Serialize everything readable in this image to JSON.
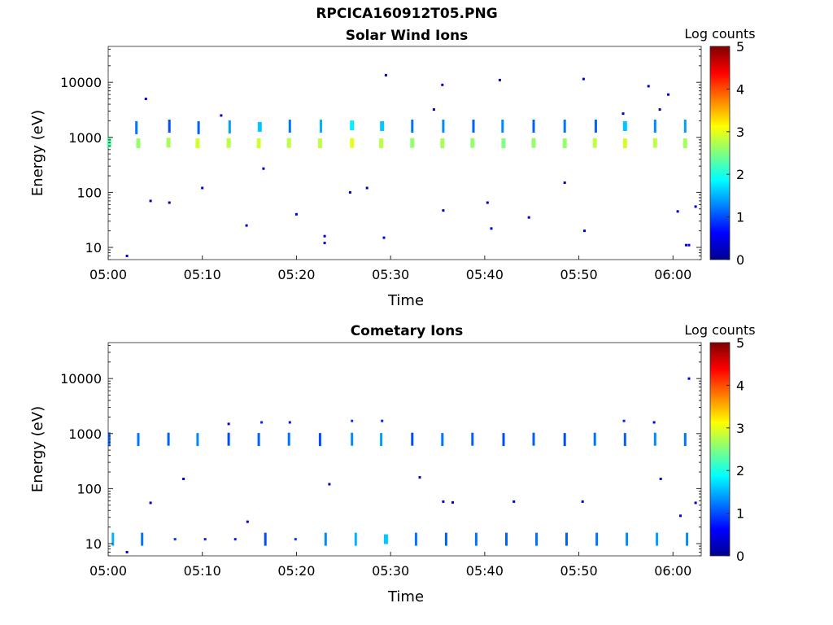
{
  "figure_title": "RPCICA160912T05.PNG",
  "chart_data": [
    {
      "type": "heatmap",
      "title": "Solar Wind Ions",
      "xlabel": "Time",
      "ylabel": "Energy (eV)",
      "y_scale": "log",
      "ylim": [
        6,
        45000
      ],
      "x_ticks": [
        "05:00",
        "05:10",
        "05:20",
        "05:30",
        "05:40",
        "05:50",
        "06:00"
      ],
      "x_tick_minutes": [
        0,
        10,
        20,
        30,
        40,
        50,
        60
      ],
      "xlim_minutes": [
        0,
        63
      ],
      "y_ticks": [
        "10",
        "100",
        "1000",
        "10000"
      ],
      "y_tick_values": [
        10,
        100,
        1000,
        10000
      ],
      "colorbar": {
        "label": "Log counts",
        "range": [
          0,
          5
        ],
        "ticks": [
          "0",
          "1",
          "2",
          "3",
          "4",
          "5"
        ],
        "colormap": "jet"
      },
      "grid": false,
      "cells": [
        {
          "t": 0.1,
          "e": 800,
          "v": 2.3
        },
        {
          "t": 3.2,
          "e": 780,
          "v": 2.6
        },
        {
          "t": 3.0,
          "e": 1500,
          "v": 1.2
        },
        {
          "t": 6.4,
          "e": 800,
          "v": 2.7
        },
        {
          "t": 6.5,
          "e": 1600,
          "v": 1.0
        },
        {
          "t": 9.5,
          "e": 780,
          "v": 2.9
        },
        {
          "t": 9.6,
          "e": 1500,
          "v": 1.1
        },
        {
          "t": 12.8,
          "e": 790,
          "v": 2.8
        },
        {
          "t": 12.9,
          "e": 1550,
          "v": 1.4
        },
        {
          "t": 16.0,
          "e": 780,
          "v": 2.9
        },
        {
          "t": 16.1,
          "e": 1550,
          "v": 1.6
        },
        {
          "t": 19.2,
          "e": 790,
          "v": 2.8
        },
        {
          "t": 19.3,
          "e": 1600,
          "v": 1.2
        },
        {
          "t": 22.5,
          "e": 780,
          "v": 2.8
        },
        {
          "t": 22.6,
          "e": 1600,
          "v": 1.5
        },
        {
          "t": 25.9,
          "e": 790,
          "v": 3.0
        },
        {
          "t": 25.9,
          "e": 1650,
          "v": 1.8
        },
        {
          "t": 29.0,
          "e": 780,
          "v": 2.8
        },
        {
          "t": 29.1,
          "e": 1600,
          "v": 1.6
        },
        {
          "t": 32.3,
          "e": 790,
          "v": 2.6
        },
        {
          "t": 32.3,
          "e": 1600,
          "v": 1.2
        },
        {
          "t": 35.5,
          "e": 780,
          "v": 2.7
        },
        {
          "t": 35.6,
          "e": 1600,
          "v": 1.3
        },
        {
          "t": 38.7,
          "e": 790,
          "v": 2.6
        },
        {
          "t": 38.8,
          "e": 1600,
          "v": 1.1
        },
        {
          "t": 42.0,
          "e": 780,
          "v": 2.5
        },
        {
          "t": 41.9,
          "e": 1600,
          "v": 1.3
        },
        {
          "t": 45.2,
          "e": 790,
          "v": 2.6
        },
        {
          "t": 45.2,
          "e": 1600,
          "v": 1.1
        },
        {
          "t": 48.5,
          "e": 780,
          "v": 2.6
        },
        {
          "t": 48.5,
          "e": 1600,
          "v": 1.2
        },
        {
          "t": 51.7,
          "e": 790,
          "v": 2.8
        },
        {
          "t": 51.8,
          "e": 1600,
          "v": 1.1
        },
        {
          "t": 54.9,
          "e": 780,
          "v": 2.9
        },
        {
          "t": 54.9,
          "e": 1600,
          "v": 1.6
        },
        {
          "t": 58.1,
          "e": 790,
          "v": 2.8
        },
        {
          "t": 58.1,
          "e": 1600,
          "v": 1.3
        },
        {
          "t": 61.3,
          "e": 780,
          "v": 2.7
        },
        {
          "t": 61.3,
          "e": 1600,
          "v": 1.4
        },
        {
          "t": 2.0,
          "e": 7,
          "v": 0.6
        },
        {
          "t": 23.0,
          "e": 12,
          "v": 0.5
        },
        {
          "t": 23.0,
          "e": 16,
          "v": 0.5
        },
        {
          "t": 29.3,
          "e": 15,
          "v": 0.5
        },
        {
          "t": 40.7,
          "e": 22,
          "v": 0.5
        },
        {
          "t": 50.6,
          "e": 20,
          "v": 0.5
        },
        {
          "t": 61.4,
          "e": 11,
          "v": 0.5
        },
        {
          "t": 61.7,
          "e": 11,
          "v": 0.5
        },
        {
          "t": 14.7,
          "e": 25,
          "v": 0.5
        },
        {
          "t": 4.5,
          "e": 70,
          "v": 0.4
        },
        {
          "t": 10.0,
          "e": 120,
          "v": 0.4
        },
        {
          "t": 12.0,
          "e": 2500,
          "v": 0.4
        },
        {
          "t": 20.0,
          "e": 40,
          "v": 0.4
        },
        {
          "t": 29.5,
          "e": 13500,
          "v": 0.4
        },
        {
          "t": 35.5,
          "e": 9000,
          "v": 0.4
        },
        {
          "t": 41.6,
          "e": 11000,
          "v": 0.4
        },
        {
          "t": 50.5,
          "e": 11500,
          "v": 0.4
        },
        {
          "t": 57.4,
          "e": 8500,
          "v": 0.4
        },
        {
          "t": 59.5,
          "e": 6000,
          "v": 0.4
        },
        {
          "t": 60.5,
          "e": 45,
          "v": 0.4
        },
        {
          "t": 62.4,
          "e": 55,
          "v": 0.4
        },
        {
          "t": 40.3,
          "e": 65,
          "v": 0.3
        },
        {
          "t": 44.7,
          "e": 35,
          "v": 0.4
        },
        {
          "t": 35.6,
          "e": 47,
          "v": 0.4
        },
        {
          "t": 4.0,
          "e": 5000,
          "v": 0.4
        },
        {
          "t": 6.5,
          "e": 65,
          "v": 0.3
        },
        {
          "t": 16.5,
          "e": 270,
          "v": 0.3
        },
        {
          "t": 25.7,
          "e": 100,
          "v": 0.3
        },
        {
          "t": 27.5,
          "e": 120,
          "v": 0.3
        },
        {
          "t": 48.5,
          "e": 150,
          "v": 0.3
        },
        {
          "t": 54.7,
          "e": 2700,
          "v": 0.3
        },
        {
          "t": 58.6,
          "e": 3200,
          "v": 0.3
        },
        {
          "t": 34.6,
          "e": 3200,
          "v": 0.3
        }
      ]
    },
    {
      "type": "heatmap",
      "title": "Cometary Ions",
      "xlabel": "Time",
      "ylabel": "Energy (eV)",
      "y_scale": "log",
      "ylim": [
        6,
        45000
      ],
      "x_ticks": [
        "05:00",
        "05:10",
        "05:20",
        "05:30",
        "05:40",
        "05:50",
        "06:00"
      ],
      "x_tick_minutes": [
        0,
        10,
        20,
        30,
        40,
        50,
        60
      ],
      "xlim_minutes": [
        0,
        63
      ],
      "y_ticks": [
        "10",
        "100",
        "1000",
        "10000"
      ],
      "y_tick_values": [
        10,
        100,
        1000,
        10000
      ],
      "colorbar": {
        "label": "Log counts",
        "range": [
          0,
          5
        ],
        "ticks": [
          "0",
          "1",
          "2",
          "3",
          "4",
          "5"
        ],
        "colormap": "jet"
      },
      "grid": false,
      "cells": [
        {
          "t": 0.1,
          "e": 800,
          "v": 1.1
        },
        {
          "t": 3.2,
          "e": 780,
          "v": 1.2
        },
        {
          "t": 6.4,
          "e": 790,
          "v": 1.1
        },
        {
          "t": 9.5,
          "e": 780,
          "v": 1.3
        },
        {
          "t": 12.8,
          "e": 790,
          "v": 1.0
        },
        {
          "t": 16.0,
          "e": 780,
          "v": 1.1
        },
        {
          "t": 16.3,
          "e": 1600,
          "v": 0.8
        },
        {
          "t": 19.2,
          "e": 790,
          "v": 1.2
        },
        {
          "t": 19.3,
          "e": 1600,
          "v": 0.7
        },
        {
          "t": 22.5,
          "e": 780,
          "v": 1.0
        },
        {
          "t": 25.9,
          "e": 790,
          "v": 1.3
        },
        {
          "t": 25.9,
          "e": 1700,
          "v": 0.9
        },
        {
          "t": 29.0,
          "e": 780,
          "v": 1.4
        },
        {
          "t": 29.1,
          "e": 1700,
          "v": 0.8
        },
        {
          "t": 32.3,
          "e": 790,
          "v": 1.0
        },
        {
          "t": 35.5,
          "e": 780,
          "v": 1.2
        },
        {
          "t": 38.7,
          "e": 790,
          "v": 1.1
        },
        {
          "t": 42.0,
          "e": 780,
          "v": 1.0
        },
        {
          "t": 45.2,
          "e": 790,
          "v": 1.1
        },
        {
          "t": 48.5,
          "e": 780,
          "v": 1.0
        },
        {
          "t": 51.7,
          "e": 790,
          "v": 1.2
        },
        {
          "t": 54.9,
          "e": 780,
          "v": 1.1
        },
        {
          "t": 54.8,
          "e": 1700,
          "v": 0.8
        },
        {
          "t": 58.1,
          "e": 790,
          "v": 1.3
        },
        {
          "t": 58.0,
          "e": 1600,
          "v": 0.6
        },
        {
          "t": 61.3,
          "e": 780,
          "v": 1.2
        },
        {
          "t": 61.7,
          "e": 10000,
          "v": 0.5
        },
        {
          "t": 0.5,
          "e": 12,
          "v": 1.5
        },
        {
          "t": 3.6,
          "e": 12,
          "v": 1.2
        },
        {
          "t": 7.1,
          "e": 12,
          "v": 0.9
        },
        {
          "t": 10.3,
          "e": 12,
          "v": 0.8
        },
        {
          "t": 13.5,
          "e": 12,
          "v": 0.8
        },
        {
          "t": 16.7,
          "e": 12,
          "v": 1.0
        },
        {
          "t": 19.9,
          "e": 12,
          "v": 0.9
        },
        {
          "t": 23.1,
          "e": 12,
          "v": 1.3
        },
        {
          "t": 26.3,
          "e": 12,
          "v": 1.5
        },
        {
          "t": 29.5,
          "e": 12,
          "v": 1.6
        },
        {
          "t": 32.7,
          "e": 12,
          "v": 1.2
        },
        {
          "t": 35.9,
          "e": 12,
          "v": 1.1
        },
        {
          "t": 39.1,
          "e": 12,
          "v": 1.2
        },
        {
          "t": 42.3,
          "e": 12,
          "v": 1.1
        },
        {
          "t": 45.5,
          "e": 12,
          "v": 1.2
        },
        {
          "t": 48.7,
          "e": 12,
          "v": 1.1
        },
        {
          "t": 51.9,
          "e": 12,
          "v": 1.2
        },
        {
          "t": 55.1,
          "e": 12,
          "v": 1.3
        },
        {
          "t": 58.3,
          "e": 12,
          "v": 1.4
        },
        {
          "t": 61.5,
          "e": 12,
          "v": 1.3
        },
        {
          "t": 2.0,
          "e": 7,
          "v": 0.5
        },
        {
          "t": 4.5,
          "e": 55,
          "v": 0.4
        },
        {
          "t": 8.0,
          "e": 150,
          "v": 0.4
        },
        {
          "t": 12.8,
          "e": 1500,
          "v": 0.4
        },
        {
          "t": 14.8,
          "e": 25,
          "v": 0.5
        },
        {
          "t": 23.5,
          "e": 120,
          "v": 0.4
        },
        {
          "t": 33.1,
          "e": 160,
          "v": 0.4
        },
        {
          "t": 35.6,
          "e": 58,
          "v": 0.4
        },
        {
          "t": 36.6,
          "e": 56,
          "v": 0.4
        },
        {
          "t": 43.1,
          "e": 58,
          "v": 0.4
        },
        {
          "t": 50.4,
          "e": 58,
          "v": 0.4
        },
        {
          "t": 58.7,
          "e": 150,
          "v": 0.4
        },
        {
          "t": 60.8,
          "e": 32,
          "v": 0.5
        },
        {
          "t": 62.4,
          "e": 55,
          "v": 0.4
        }
      ]
    }
  ]
}
